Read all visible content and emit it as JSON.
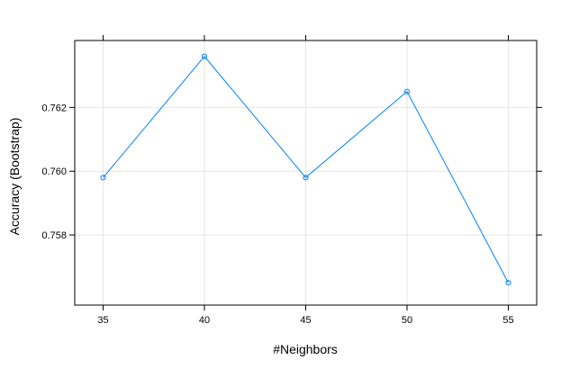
{
  "chart_data": {
    "type": "line",
    "xlabel": "#Neighbors",
    "ylabel": "Accuracy (Bootstrap)",
    "x": [
      35,
      40,
      45,
      50,
      55
    ],
    "y": [
      0.7598,
      0.7636,
      0.7598,
      0.7625,
      0.7565
    ],
    "xticks": [
      "35",
      "40",
      "45",
      "50",
      "55"
    ],
    "yticks": [
      "0.758",
      "0.760",
      "0.762"
    ],
    "xlim": [
      33.6,
      56.4
    ],
    "ylim": [
      0.7558,
      0.7641
    ],
    "grid": true,
    "line_color": "#0080ff",
    "point_marker": "open-circle"
  }
}
